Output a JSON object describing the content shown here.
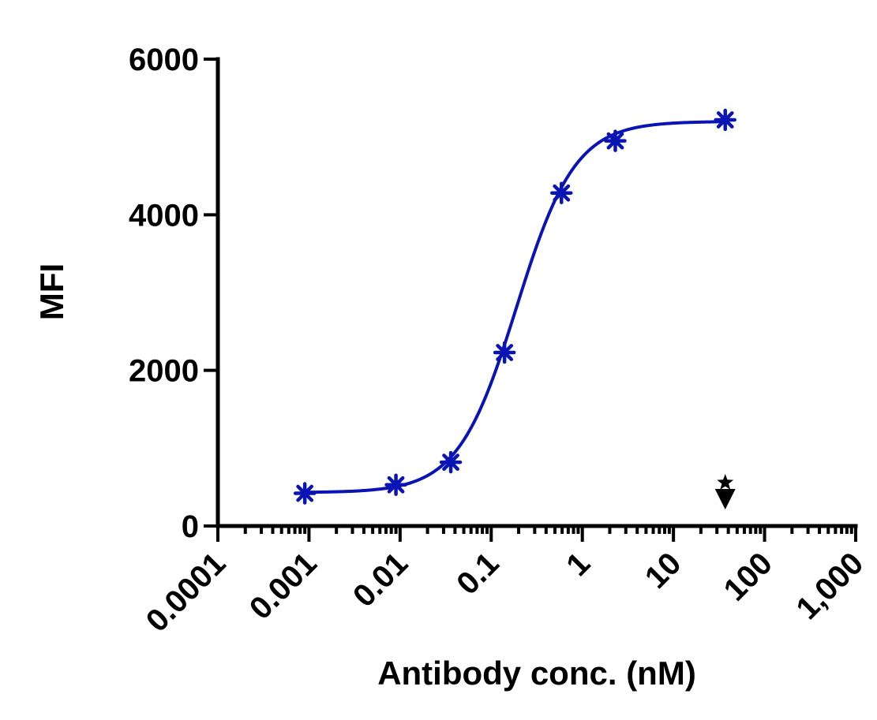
{
  "chart_data": {
    "type": "scatter",
    "title": "",
    "xlabel": "Antibody conc. (nM)",
    "ylabel": "MFI",
    "x_scale": "log",
    "xlim": [
      0.0001,
      1000
    ],
    "ylim": [
      0,
      6000
    ],
    "x_ticks": [
      0.0001,
      0.001,
      0.01,
      0.1,
      1,
      10,
      100,
      1000
    ],
    "x_tick_labels": [
      "0.0001",
      "0.001",
      "0.01",
      "0.1",
      "1",
      "10",
      "100",
      "1,000"
    ],
    "y_ticks": [
      0,
      2000,
      4000,
      6000
    ],
    "y_tick_labels": [
      "0",
      "2000",
      "4000",
      "6000"
    ],
    "grid": false,
    "legend": "none",
    "series": [
      {
        "color": "#0a14b4",
        "marker": "asterisk",
        "x": [
          0.0009,
          0.009,
          0.036,
          0.14,
          0.59,
          2.3,
          37
        ],
        "y": [
          420,
          530,
          820,
          2230,
          4280,
          4950,
          5220
        ],
        "fit": {
          "model": "four-parameter logistic",
          "bottom": 430,
          "top": 5200,
          "ec50": 0.19,
          "hill": 1.35
        }
      }
    ],
    "annotations": [
      {
        "kind": "marker",
        "symbol": "star-and-down-arrow",
        "x": 37,
        "y": 0,
        "color": "#000000"
      }
    ]
  }
}
